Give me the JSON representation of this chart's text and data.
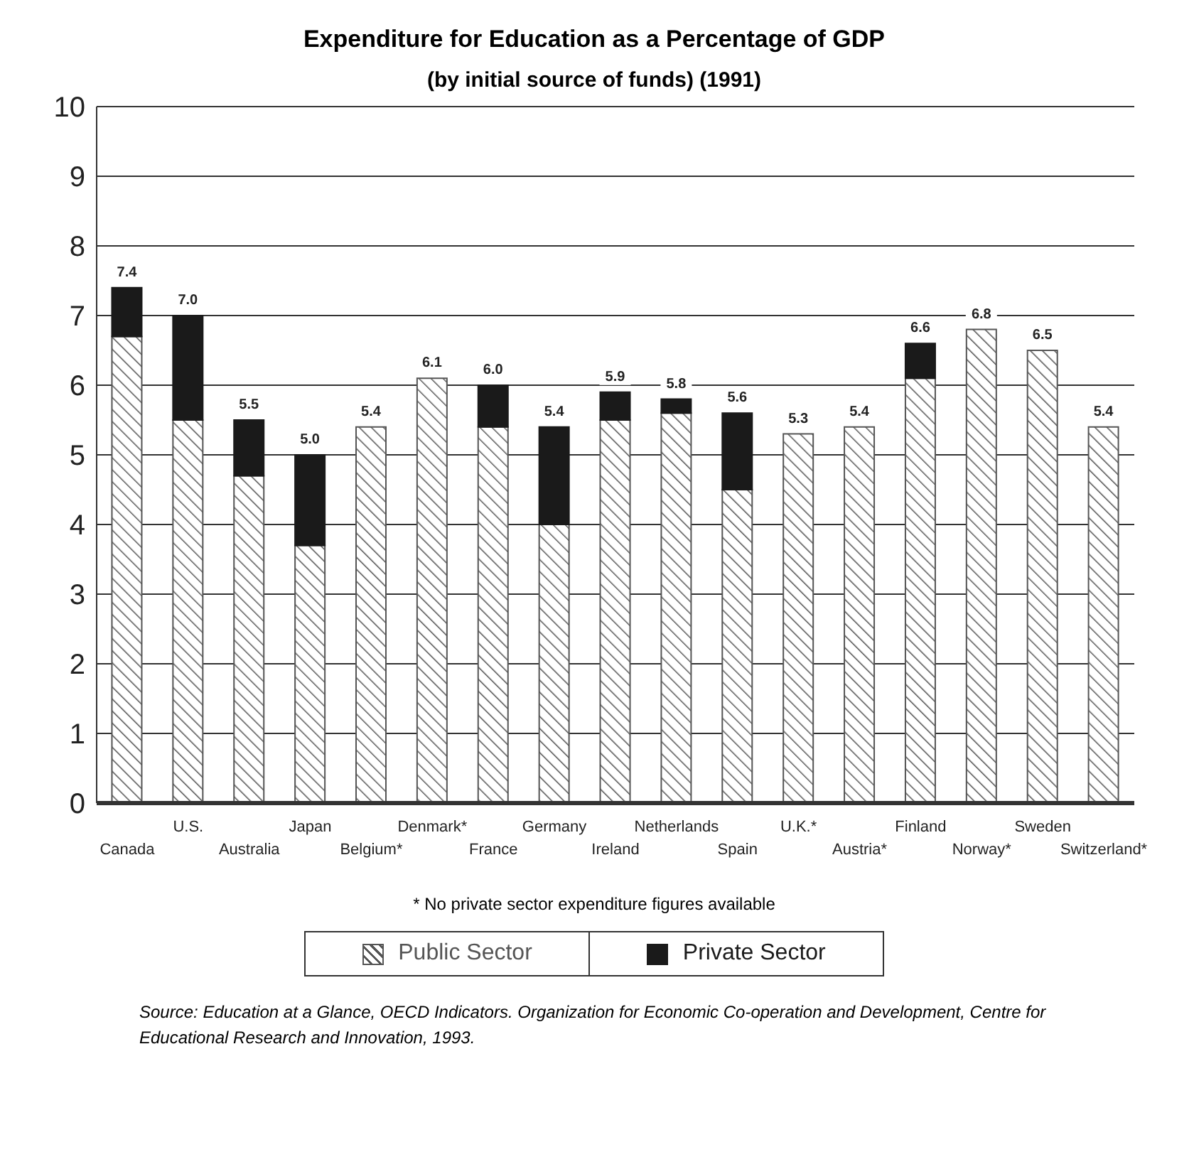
{
  "chart_data": {
    "type": "bar",
    "title": "Expenditure for Education as a Percentage of GDP",
    "subtitle": "(by initial source of funds) (1991)",
    "categories": [
      "Canada",
      "U.S.",
      "Australia",
      "Japan",
      "Belgium*",
      "Denmark*",
      "France",
      "Germany",
      "Ireland",
      "Netherlands",
      "Spain",
      "U.K.*",
      "Austria*",
      "Finland",
      "Norway*",
      "Sweden",
      "Switzerland*"
    ],
    "stacked": true,
    "series": [
      {
        "name": "Public Sector",
        "color": "#555555",
        "values": [
          6.7,
          5.5,
          4.7,
          3.7,
          5.4,
          6.1,
          5.4,
          4.0,
          5.5,
          5.6,
          4.5,
          5.3,
          5.4,
          6.1,
          6.8,
          6.5,
          5.4
        ]
      },
      {
        "name": "Private Sector",
        "color": "#1a1a1a",
        "values": [
          0.7,
          1.5,
          0.8,
          1.3,
          null,
          null,
          0.6,
          1.4,
          0.4,
          0.2,
          1.1,
          null,
          null,
          0.5,
          null,
          null,
          null
        ]
      }
    ],
    "totals": [
      "7.4",
      "7.0",
      "5.5",
      "5.0",
      "5.4",
      "6.1",
      "6.0",
      "5.4",
      "5.9",
      "5.8",
      "5.6",
      "5.3",
      "5.4",
      "6.6",
      "6.8",
      "6.5",
      "5.4"
    ],
    "ylim": [
      0,
      10
    ],
    "yticks": [
      0,
      1,
      2,
      3,
      4,
      5,
      6,
      7,
      8,
      9,
      10
    ],
    "grid": "y",
    "legend": "bottom",
    "annotations": [
      "* No private sector expenditure figures available",
      "Source: Education at a Glance, OECD Indicators. Organization for Economic Co-operation and Development, Centre for Educational Research and Innovation, 1993."
    ]
  }
}
